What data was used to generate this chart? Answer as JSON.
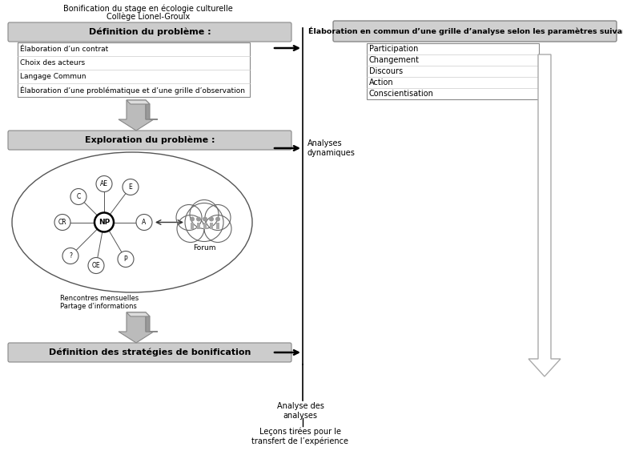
{
  "title_line1": "Bonification du stage en écologie culturelle",
  "title_line2": "Collège Lionel-Groulx",
  "box1_title": "Définition du problème :",
  "box1_items": [
    "Élaboration d’un contrat",
    "Choix des acteurs",
    "Langage Commun",
    "Élaboration d’une problématique et d’une grille d’observation"
  ],
  "box2_title": "Exploration du problème :",
  "box3_title": "Définition des stratégies de bonification",
  "right_box_title": "Élaboration en commun d’une grille d’analyse selon les paramètres suivants :",
  "right_box_items": [
    "Participation",
    "Changement",
    "Discours",
    "Action",
    "Conscientisation"
  ],
  "analyses_label": "Analyses\ndynamiques",
  "analyse_label": "Analyse des\nanalyses",
  "lecons_label": "Leçons tirées pour le\ntransfert de l’expérience",
  "forum_label": "Forum",
  "rencontres_label": "Rencontres mensuelles\nPartage d’informations",
  "bg_color": "#ffffff"
}
